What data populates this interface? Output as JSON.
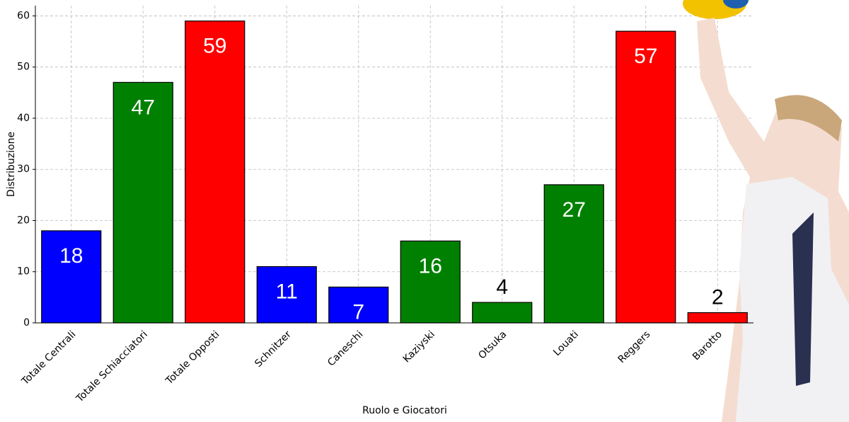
{
  "chart_data": {
    "type": "bar",
    "x_label": "Ruolo e Giocatori",
    "y_label": "Distribuzione",
    "categories": [
      "Totale Centrali",
      "Totale Schiacciatori",
      "Totale Opposti",
      "Schnitzer",
      "Caneschi",
      "Kaziyski",
      "Otsuka",
      "Louati",
      "Reggers",
      "Barotto"
    ],
    "values": [
      18,
      47,
      59,
      11,
      7,
      16,
      4,
      27,
      57,
      2
    ],
    "colors": [
      "#0000ff",
      "#008000",
      "#ff0000",
      "#0000ff",
      "#0000ff",
      "#008000",
      "#008000",
      "#008000",
      "#ff0000",
      "#ff0000"
    ],
    "ylim": [
      0,
      62
    ],
    "yticks": [
      0,
      10,
      20,
      30,
      40,
      50,
      60
    ],
    "grid": true
  }
}
